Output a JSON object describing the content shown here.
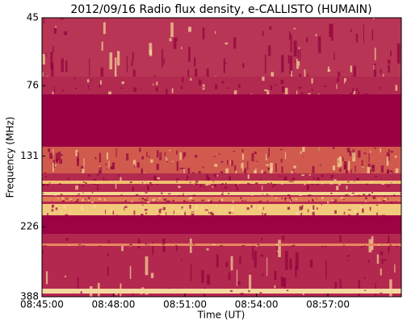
{
  "chart_data": {
    "type": "spectrogram",
    "title": "2012/09/16  Radio flux density, e-CALLISTO (HUMAIN)",
    "xlabel": "Time (UT)",
    "ylabel": "Frequency (MHz)",
    "xlim": [
      "08:45:00",
      "09:00:05"
    ],
    "xticks": [
      "08:45:00",
      "08:48:00",
      "08:51:00",
      "08:54:00",
      "08:57:00"
    ],
    "ylim": [
      45,
      388
    ],
    "yscale": "log",
    "yinverted": true,
    "yticks": [
      45,
      76,
      131,
      226,
      388
    ]
  }
}
